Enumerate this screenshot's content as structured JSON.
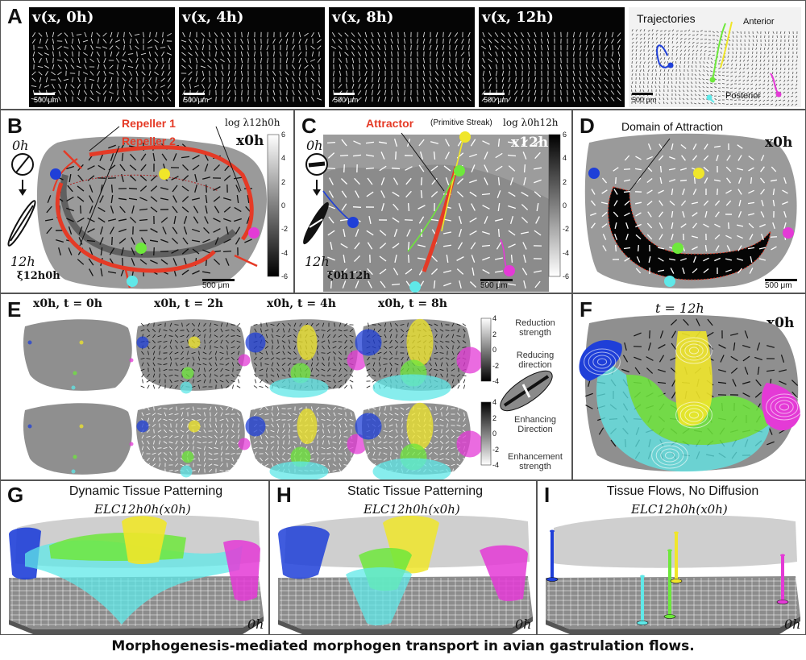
{
  "panels": {
    "A": {
      "letter": "A",
      "frames": [
        "v(x, 0h)",
        "v(x, 4h)",
        "v(x, 8h)",
        "v(x, 12h)"
      ],
      "trajectories_title": "Trajectories",
      "anterior": "Anterior",
      "posterior": "Posterior",
      "scale": "500 μm"
    },
    "B": {
      "letter": "B",
      "repeller1": "Repeller 1",
      "repeller2": "Repeller 2",
      "time_start": "0h",
      "time_end": "12h",
      "xlabel": "x0h",
      "field_label": "ξ12h0h",
      "colorbar_label": "log λ12h0h",
      "colorbar_ticks": [
        "6",
        "4",
        "2",
        "0",
        "-2",
        "-4",
        "-6"
      ],
      "scale": "500 μm"
    },
    "C": {
      "letter": "C",
      "attractor": "Attractor",
      "attractor_note": "(Primitive Streak)",
      "time_start": "0h",
      "time_end": "12h",
      "xlabel": "x12h",
      "field_label": "ξ0h12h",
      "colorbar_label": "log λ0h12h",
      "colorbar_ticks": [
        "6",
        "4",
        "2",
        "0",
        "-2",
        "-4",
        "-6"
      ],
      "scale": "500 μm"
    },
    "D": {
      "letter": "D",
      "domain": "Domain of Attraction",
      "xlabel": "x0h",
      "scale": "500 μm"
    },
    "E": {
      "letter": "E",
      "frames": [
        "x0h, t = 0h",
        "x0h, t = 2h",
        "x0h, t = 4h",
        "x0h, t = 8h"
      ],
      "reduction_strength": "Reduction strength",
      "reducing_direction": "Reducing direction",
      "enhancing_direction": "Enhancing Direction",
      "enhancement_strength": "Enhancement strength",
      "cb_top_ticks": [
        "4",
        "2",
        "0",
        "-2",
        "-4"
      ],
      "cb_bottom_ticks": [
        "4",
        "2",
        "0",
        "-2",
        "-4"
      ]
    },
    "F": {
      "letter": "F",
      "time": "t = 12h",
      "xlabel": "x0h"
    },
    "G": {
      "letter": "G",
      "title": "Dynamic Tissue Patterning",
      "subtitle": "ELC12h0h(x0h)",
      "corner": "0h"
    },
    "H": {
      "letter": "H",
      "title": "Static Tissue Patterning",
      "subtitle": "ELC12h0h(x0h)",
      "corner": "0h"
    },
    "I": {
      "letter": "I",
      "title": "Tissue Flows, No Diffusion",
      "subtitle": "ELC12h0h(x0h)",
      "corner": "0h"
    }
  },
  "caption": "Morphogenesis-mediated morphogen transport in avian gastrulation flows.",
  "colors": {
    "red": "#e53a26",
    "blue": "#1f3fd8",
    "yellow": "#f0e62a",
    "green": "#6ee83c",
    "cyan": "#5fe8e8",
    "magenta": "#e43ad6",
    "tissue_gray": "#8f8f8f"
  }
}
